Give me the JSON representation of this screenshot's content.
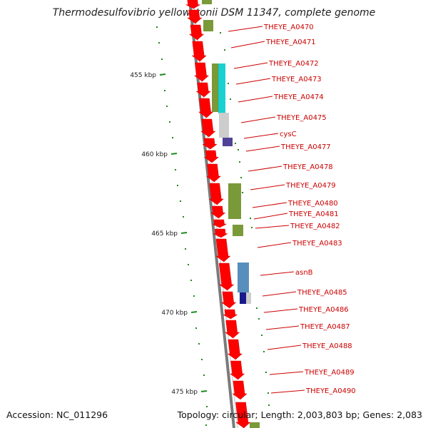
{
  "title": "Thermodesulfovibrio yellowstonii DSM 11347, complete genome",
  "footer": {
    "accession": "Accession: NC_011296",
    "summary": "Topology: circular; Length: 2,003,803 bp; Genes: 2,083"
  },
  "colors": {
    "backbone": "#8c8c8c",
    "cds": "#ff0000",
    "label": "#cc0000",
    "tick": "#1e8a1e",
    "olive": "#6b8e23",
    "cyan": "#00cccc",
    "lightgray": "#c8c8c8",
    "indigo": "#3d2e8c",
    "steelblue": "#4682b4",
    "navy": "#000080"
  },
  "scale_labels": [
    "455 kbp",
    "460 kbp",
    "465 kbp",
    "470 kbp",
    "475 kbp"
  ],
  "gene_labels": [
    "THEYE_A0470",
    "THEYE_A0471",
    "THEYE_A0472",
    "THEYE_A0473",
    "THEYE_A0474",
    "THEYE_A0475",
    "cysC",
    "THEYE_A0477",
    "THEYE_A0478",
    "THEYE_A0479",
    "THEYE_A0480",
    "THEYE_A0481",
    "THEYE_A0482",
    "THEYE_A0483",
    "asnB",
    "THEYE_A0485",
    "THEYE_A0486",
    "THEYE_A0487",
    "THEYE_A0488",
    "THEYE_A0489",
    "THEYE_A0490"
  ]
}
